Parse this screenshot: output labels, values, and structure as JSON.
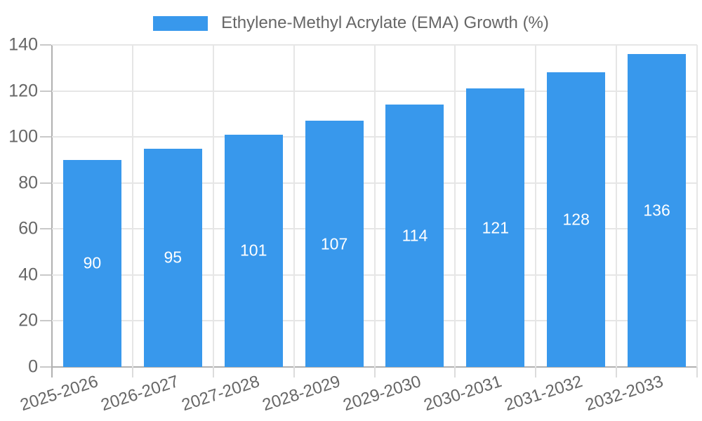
{
  "legend": {
    "label": "Ethylene-Methyl Acrylate (EMA) Growth (%)",
    "position": "top"
  },
  "colors": {
    "bar": "#3898ec",
    "bar_value_label": "#ffffff",
    "axis_line": "#b0b0b0",
    "gridline": "#e6e6e6",
    "tick": "#c9c9c9",
    "text": "#666666",
    "background": "#ffffff"
  },
  "chart_data": {
    "type": "bar",
    "title": "Ethylene-Methyl Acrylate (EMA) Growth (%)",
    "categories": [
      "2025-2026",
      "2026-2027",
      "2027-2028",
      "2028-2029",
      "2029-2030",
      "2030-2031",
      "2031-2032",
      "2032-2033"
    ],
    "series": [
      {
        "name": "Ethylene-Methyl Acrylate (EMA) Growth (%)",
        "values": [
          90,
          95,
          101,
          107,
          114,
          121,
          128,
          136
        ]
      }
    ],
    "value_labels_shown": true,
    "xlabel": "",
    "ylabel": "",
    "ylim": [
      0,
      140
    ],
    "yticks": [
      0,
      20,
      40,
      60,
      80,
      100,
      120,
      140
    ],
    "grid": true,
    "legend_position": "top",
    "x_label_rotation_deg": -18
  }
}
